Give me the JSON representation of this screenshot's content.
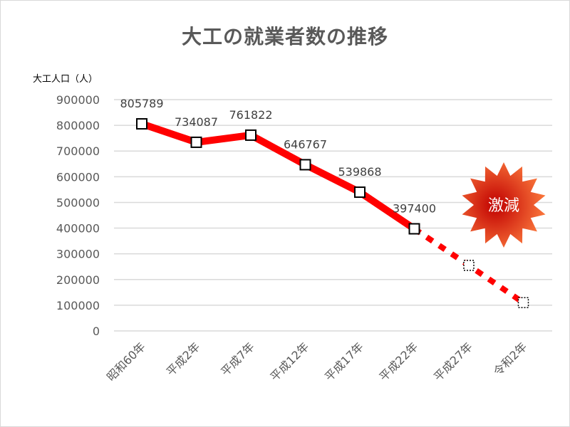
{
  "title": "大工の就業者数の推移",
  "colors": {
    "line": "#ff0000",
    "grid": "#d9d9d9",
    "text": "#595959",
    "badge_inner": "#c00000",
    "badge_outer": "#ff8040"
  },
  "badge": {
    "text": "激減",
    "icon": "starburst-icon"
  },
  "chart_data": {
    "type": "line",
    "title": "大工の就業者数の推移",
    "ylabel": "大工人口（人）",
    "xlabel": "",
    "ylim": [
      0,
      900000
    ],
    "yticks": [
      "0",
      "100000",
      "200000",
      "300000",
      "400000",
      "500000",
      "600000",
      "700000",
      "800000",
      "900000"
    ],
    "categories": [
      "昭和60年",
      "平成2年",
      "平成7年",
      "平成12年",
      "平成17年",
      "平成22年",
      "平成27年",
      "令和2年"
    ],
    "series": [
      {
        "style": "solid",
        "values": [
          805789,
          734087,
          761822,
          646767,
          539868,
          397400,
          null,
          null
        ],
        "labels": [
          "805789",
          "734087",
          "761822",
          "646767",
          "539868",
          "397400",
          "",
          ""
        ]
      },
      {
        "style": "dotted-projection",
        "values": [
          null,
          null,
          null,
          null,
          null,
          397400,
          255000,
          110000
        ]
      }
    ],
    "grid": true,
    "legend": "none"
  }
}
